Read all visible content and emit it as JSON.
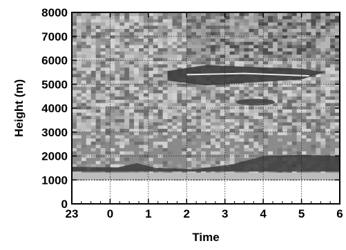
{
  "chart_data": {
    "type": "heatmap",
    "xlabel": "Time",
    "ylabel": "Height (m)",
    "x_ticks": [
      "23",
      "0",
      "1",
      "2",
      "3",
      "4",
      "5",
      "6"
    ],
    "y_ticks": [
      "0",
      "1000",
      "2000",
      "3000",
      "4000",
      "5000",
      "6000",
      "7000",
      "8000"
    ],
    "xlim": [
      23,
      30
    ],
    "ylim": [
      0,
      8000
    ],
    "grid": true,
    "colormap": "grayscale",
    "colors": {
      "dark": "#3c3c3c",
      "mid": "#8c8c8c",
      "light": "#c8c8c8",
      "base": "#a0a0a0"
    },
    "features": [
      {
        "label": "layer",
        "x": [
          23,
          30
        ],
        "y": [
          1350,
          1550
        ]
      },
      {
        "label": "upper layer",
        "x": [
          25.5,
          30
        ],
        "y": [
          4800,
          5800
        ]
      }
    ]
  }
}
